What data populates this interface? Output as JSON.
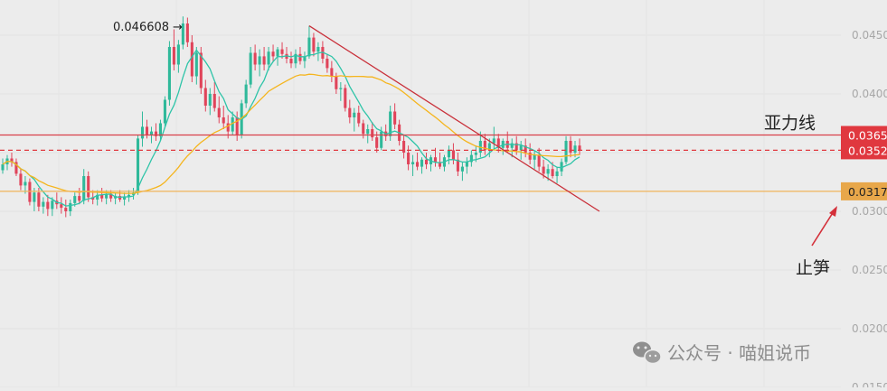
{
  "chart_data": {
    "type": "candlestick",
    "y_axis": {
      "min": 0.015,
      "max": 0.048,
      "position": "right",
      "tick_labels": [
        "0.0450",
        "0.0400",
        "0.0350",
        "0.0300",
        "0.0250",
        "0.0200",
        "0.0150"
      ],
      "tick_values": [
        0.045,
        0.04,
        0.035,
        0.03,
        0.025,
        0.02,
        0.015
      ]
    },
    "grid": true,
    "high_annotation": {
      "text": "0.046608",
      "value": 0.046608
    },
    "price_tags": [
      {
        "label": "0.0365",
        "value": 0.0365,
        "color": "#e0383f"
      },
      {
        "label": "0.0352",
        "value": 0.0352,
        "color": "#e0383f"
      },
      {
        "label": "0.0317",
        "value": 0.0317,
        "color": "#e8a74a"
      }
    ],
    "horizontal_lines": [
      {
        "name": "resistance",
        "value": 0.0365,
        "color": "#d84049",
        "style": "solid"
      },
      {
        "name": "last-price",
        "value": 0.0352,
        "color": "#e0383f",
        "style": "dashed"
      },
      {
        "name": "stop-loss",
        "value": 0.0317,
        "color": "#f0b35a",
        "style": "solid"
      }
    ],
    "trendline": {
      "from": [
        68,
        0.0458
      ],
      "to": [
        130,
        0.03
      ],
      "color": "#c9303a"
    },
    "annotations": {
      "resistance_label": "亚力线",
      "stop_label": "止笋"
    },
    "moving_averages": [
      {
        "period": 7,
        "color": "#2ec4a8"
      },
      {
        "period": 30,
        "color": "#f5b51e"
      }
    ],
    "colors": {
      "up": "#2fb99a",
      "down": "#e0445a"
    },
    "ohlc": [
      [
        0.0335,
        0.0345,
        0.0332,
        0.034
      ],
      [
        0.034,
        0.0348,
        0.0335,
        0.0345
      ],
      [
        0.0345,
        0.035,
        0.0338,
        0.0342
      ],
      [
        0.0342,
        0.0345,
        0.033,
        0.0332
      ],
      [
        0.0332,
        0.0336,
        0.0318,
        0.0322
      ],
      [
        0.0322,
        0.033,
        0.0315,
        0.0325
      ],
      [
        0.0325,
        0.0328,
        0.0305,
        0.0308
      ],
      [
        0.0308,
        0.032,
        0.03,
        0.0316
      ],
      [
        0.0316,
        0.032,
        0.03,
        0.0304
      ],
      [
        0.0304,
        0.0312,
        0.0298,
        0.0308
      ],
      [
        0.0308,
        0.0314,
        0.0296,
        0.0302
      ],
      [
        0.0302,
        0.0312,
        0.0296,
        0.0309
      ],
      [
        0.0309,
        0.0316,
        0.0302,
        0.0306
      ],
      [
        0.0306,
        0.0312,
        0.0298,
        0.0303
      ],
      [
        0.0303,
        0.031,
        0.0295,
        0.03
      ],
      [
        0.03,
        0.031,
        0.0296,
        0.0307
      ],
      [
        0.0307,
        0.0316,
        0.0304,
        0.0313
      ],
      [
        0.0313,
        0.032,
        0.0306,
        0.0309
      ],
      [
        0.0309,
        0.0336,
        0.0306,
        0.033
      ],
      [
        0.033,
        0.0334,
        0.0308,
        0.0312
      ],
      [
        0.0312,
        0.0318,
        0.0306,
        0.031
      ],
      [
        0.031,
        0.0318,
        0.0305,
        0.0314
      ],
      [
        0.0314,
        0.032,
        0.0308,
        0.0311
      ],
      [
        0.0311,
        0.0318,
        0.0306,
        0.0315
      ],
      [
        0.0315,
        0.0318,
        0.0308,
        0.0311
      ],
      [
        0.0311,
        0.0316,
        0.0306,
        0.0313
      ],
      [
        0.0313,
        0.0318,
        0.0308,
        0.031
      ],
      [
        0.031,
        0.0316,
        0.0305,
        0.0312
      ],
      [
        0.0312,
        0.0318,
        0.0308,
        0.0314
      ],
      [
        0.0314,
        0.032,
        0.031,
        0.0316
      ],
      [
        0.0316,
        0.0365,
        0.0314,
        0.0362
      ],
      [
        0.0362,
        0.0385,
        0.0355,
        0.0372
      ],
      [
        0.0372,
        0.0378,
        0.0362,
        0.0365
      ],
      [
        0.0365,
        0.0372,
        0.0358,
        0.0368
      ],
      [
        0.0368,
        0.0375,
        0.036,
        0.0364
      ],
      [
        0.0364,
        0.0378,
        0.036,
        0.0375
      ],
      [
        0.0375,
        0.0398,
        0.0372,
        0.0395
      ],
      [
        0.0395,
        0.0445,
        0.039,
        0.044
      ],
      [
        0.044,
        0.0455,
        0.042,
        0.0425
      ],
      [
        0.0425,
        0.0446,
        0.0418,
        0.0442
      ],
      [
        0.0442,
        0.0466,
        0.0438,
        0.046
      ],
      [
        0.046,
        0.0465,
        0.044,
        0.0444
      ],
      [
        0.0444,
        0.045,
        0.041,
        0.0415
      ],
      [
        0.0415,
        0.044,
        0.0408,
        0.0435
      ],
      [
        0.0435,
        0.044,
        0.04,
        0.0405
      ],
      [
        0.0405,
        0.0412,
        0.0385,
        0.039
      ],
      [
        0.039,
        0.0405,
        0.0382,
        0.04
      ],
      [
        0.04,
        0.041,
        0.0385,
        0.0388
      ],
      [
        0.0388,
        0.0398,
        0.0375,
        0.038
      ],
      [
        0.038,
        0.039,
        0.037,
        0.0375
      ],
      [
        0.0375,
        0.0382,
        0.0362,
        0.0368
      ],
      [
        0.0368,
        0.0385,
        0.0365,
        0.038
      ],
      [
        0.038,
        0.0385,
        0.036,
        0.0365
      ],
      [
        0.0365,
        0.0395,
        0.0362,
        0.0392
      ],
      [
        0.0392,
        0.0412,
        0.0388,
        0.0408
      ],
      [
        0.0408,
        0.044,
        0.0405,
        0.0435
      ],
      [
        0.0435,
        0.0442,
        0.042,
        0.0425
      ],
      [
        0.0425,
        0.0438,
        0.0415,
        0.0432
      ],
      [
        0.0432,
        0.044,
        0.042,
        0.0425
      ],
      [
        0.0425,
        0.044,
        0.042,
        0.0436
      ],
      [
        0.0436,
        0.0442,
        0.0428,
        0.0432
      ],
      [
        0.0432,
        0.044,
        0.0424,
        0.0438
      ],
      [
        0.0438,
        0.0444,
        0.043,
        0.0434
      ],
      [
        0.0434,
        0.044,
        0.0426,
        0.043
      ],
      [
        0.043,
        0.0436,
        0.0422,
        0.0426
      ],
      [
        0.0426,
        0.0438,
        0.0422,
        0.0434
      ],
      [
        0.0434,
        0.044,
        0.0425,
        0.0428
      ],
      [
        0.0428,
        0.0436,
        0.0422,
        0.0432
      ],
      [
        0.0432,
        0.0458,
        0.043,
        0.0448
      ],
      [
        0.0448,
        0.0452,
        0.0432,
        0.0436
      ],
      [
        0.0436,
        0.0444,
        0.0428,
        0.044
      ],
      [
        0.044,
        0.0445,
        0.0426,
        0.043
      ],
      [
        0.043,
        0.0434,
        0.0418,
        0.0422
      ],
      [
        0.0422,
        0.0428,
        0.041,
        0.0415
      ],
      [
        0.0415,
        0.0418,
        0.04,
        0.0404
      ],
      [
        0.0404,
        0.041,
        0.0394,
        0.0405
      ],
      [
        0.0405,
        0.0408,
        0.0385,
        0.0388
      ],
      [
        0.0388,
        0.0395,
        0.0375,
        0.038
      ],
      [
        0.038,
        0.0388,
        0.0368,
        0.0384
      ],
      [
        0.0384,
        0.039,
        0.0372,
        0.0375
      ],
      [
        0.0375,
        0.0378,
        0.0362,
        0.0366
      ],
      [
        0.0366,
        0.0374,
        0.0358,
        0.037
      ],
      [
        0.037,
        0.0376,
        0.036,
        0.0363
      ],
      [
        0.0363,
        0.0368,
        0.035,
        0.0354
      ],
      [
        0.0354,
        0.0372,
        0.0352,
        0.0368
      ],
      [
        0.0368,
        0.0374,
        0.036,
        0.0364
      ],
      [
        0.0364,
        0.039,
        0.036,
        0.0385
      ],
      [
        0.0385,
        0.0392,
        0.037,
        0.0374
      ],
      [
        0.0374,
        0.0378,
        0.0356,
        0.036
      ],
      [
        0.036,
        0.0365,
        0.0345,
        0.035
      ],
      [
        0.035,
        0.0356,
        0.0335,
        0.034
      ],
      [
        0.034,
        0.0348,
        0.033,
        0.0342
      ],
      [
        0.0342,
        0.035,
        0.0335,
        0.0338
      ],
      [
        0.0338,
        0.0346,
        0.0332,
        0.0344
      ],
      [
        0.0344,
        0.035,
        0.0336,
        0.034
      ],
      [
        0.034,
        0.0348,
        0.0334,
        0.0346
      ],
      [
        0.0346,
        0.0354,
        0.0338,
        0.0342
      ],
      [
        0.0342,
        0.035,
        0.0336,
        0.0338
      ],
      [
        0.0338,
        0.0348,
        0.0334,
        0.0346
      ],
      [
        0.0346,
        0.0356,
        0.034,
        0.0352
      ],
      [
        0.0352,
        0.0358,
        0.034,
        0.0344
      ],
      [
        0.0344,
        0.035,
        0.033,
        0.0334
      ],
      [
        0.0334,
        0.0342,
        0.0326,
        0.0338
      ],
      [
        0.0338,
        0.0346,
        0.0332,
        0.0342
      ],
      [
        0.0342,
        0.0352,
        0.0338,
        0.0348
      ],
      [
        0.0348,
        0.0356,
        0.0342,
        0.035
      ],
      [
        0.035,
        0.0368,
        0.0346,
        0.036
      ],
      [
        0.036,
        0.0366,
        0.0348,
        0.0352
      ],
      [
        0.0352,
        0.0362,
        0.0346,
        0.0358
      ],
      [
        0.0358,
        0.0372,
        0.0352,
        0.0362
      ],
      [
        0.0362,
        0.0366,
        0.035,
        0.0354
      ],
      [
        0.0354,
        0.0362,
        0.0348,
        0.036
      ],
      [
        0.036,
        0.0368,
        0.035,
        0.0354
      ],
      [
        0.0354,
        0.0362,
        0.0346,
        0.0358
      ],
      [
        0.0358,
        0.0364,
        0.0348,
        0.0352
      ],
      [
        0.0352,
        0.036,
        0.0344,
        0.0356
      ],
      [
        0.0356,
        0.0362,
        0.0346,
        0.035
      ],
      [
        0.035,
        0.0358,
        0.034,
        0.0344
      ],
      [
        0.0344,
        0.0352,
        0.0336,
        0.0348
      ],
      [
        0.0348,
        0.0354,
        0.0334,
        0.0338
      ],
      [
        0.0338,
        0.0344,
        0.0328,
        0.0332
      ],
      [
        0.0332,
        0.034,
        0.0326,
        0.0336
      ],
      [
        0.0336,
        0.0342,
        0.0328,
        0.033
      ],
      [
        0.033,
        0.0338,
        0.0324,
        0.0334
      ],
      [
        0.0334,
        0.0345,
        0.033,
        0.0342
      ],
      [
        0.0342,
        0.0364,
        0.034,
        0.036
      ],
      [
        0.036,
        0.0364,
        0.0346,
        0.035
      ],
      [
        0.035,
        0.036,
        0.0346,
        0.0356
      ],
      [
        0.0356,
        0.0362,
        0.0348,
        0.0352
      ]
    ]
  },
  "watermark": {
    "text": "公众号 · 喵姐说币",
    "logo_icon": "wechat-icon"
  }
}
